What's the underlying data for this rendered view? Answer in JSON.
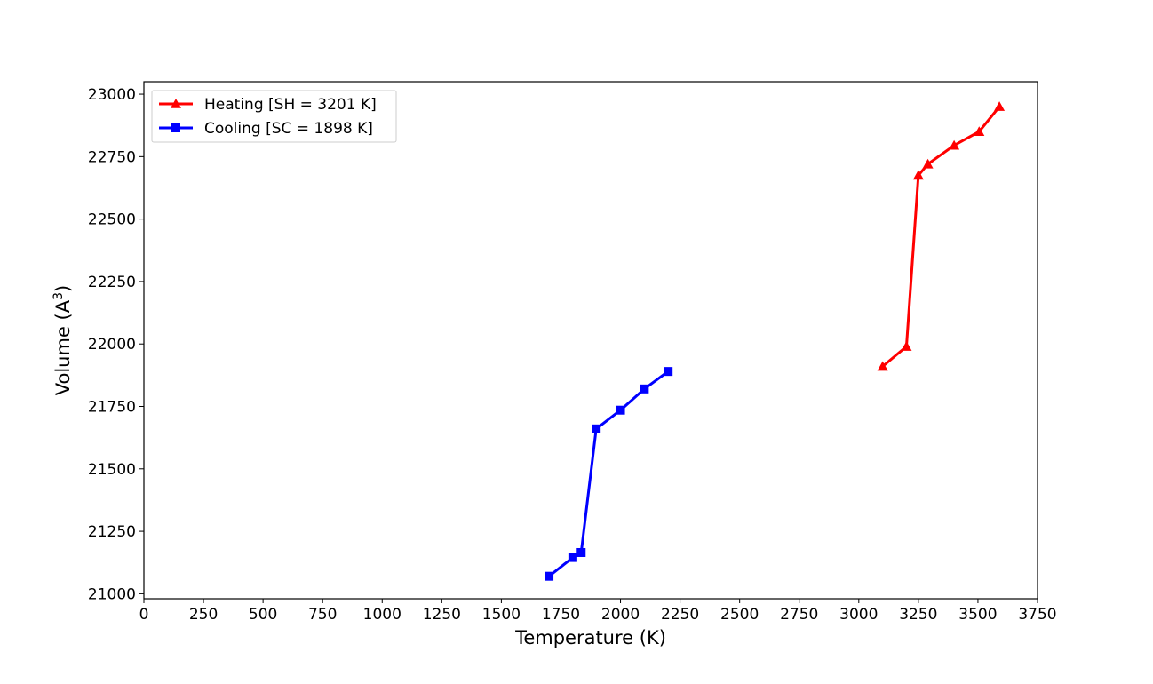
{
  "chart_data": {
    "type": "line",
    "title": "",
    "xlabel": "Temperature (K)",
    "ylabel": "Volume (A",
    "ylabel_sup": "3",
    "ylabel_close": ")",
    "xlim": [
      0,
      3750
    ],
    "ylim": [
      20980,
      23050
    ],
    "xticks": [
      0,
      250,
      500,
      750,
      1000,
      1250,
      1500,
      1750,
      2000,
      2250,
      2500,
      2750,
      3000,
      3250,
      3500,
      3750
    ],
    "yticks": [
      21000,
      21250,
      21500,
      21750,
      22000,
      22250,
      22500,
      22750,
      23000
    ],
    "grid": false,
    "legend_position": "top-left",
    "series": [
      {
        "name": "Heating [SH = 3201 K]",
        "color": "#ff0000",
        "marker": "triangle",
        "x": [
          3100,
          3200,
          3250,
          3290,
          3400,
          3505,
          3590
        ],
        "y": [
          21910,
          21990,
          22675,
          22720,
          22795,
          22850,
          22950
        ]
      },
      {
        "name": "Cooling [SC = 1898 K]",
        "color": "#0000ff",
        "marker": "square",
        "x": [
          1700,
          1800,
          1835,
          1898,
          2000,
          2100,
          2200
        ],
        "y": [
          21070,
          21145,
          21165,
          21660,
          21735,
          21820,
          21890
        ]
      }
    ]
  }
}
